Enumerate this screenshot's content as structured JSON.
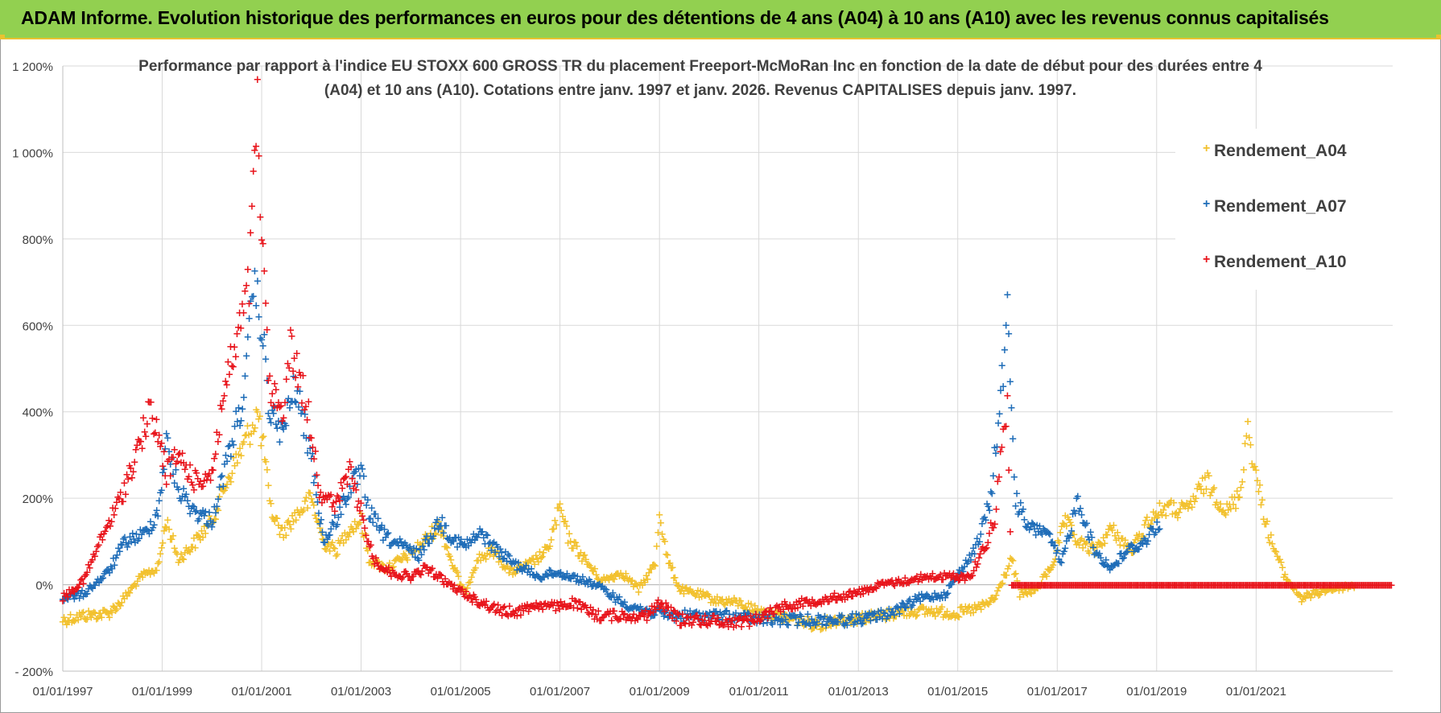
{
  "header": {
    "title": "ADAM Informe. Evolution historique des performances en euros pour des détentions de 4 ans (A04) à 10 ans (A10) avec les revenus connus capitalisés"
  },
  "chart_data": {
    "type": "scatter",
    "title": "Performance par rapport à l'indice EU STOXX 600 GROSS TR  du placement Freeport-McMoRan Inc en fonction de la date de début pour des durées entre 4 (A04) et 10 ans (A10).  Cotations entre janv. 1997 et janv. 2026. Revenus CAPITALISES  depuis janv. 1997.",
    "xlim": [
      "1997-01-01",
      "2023-10-01"
    ],
    "ylim": [
      -200,
      1200
    ],
    "y_unit": "%",
    "grid": true,
    "legend_position": "right",
    "x_ticks": [
      "1997-01-01",
      "1999-01-01",
      "2001-01-01",
      "2003-01-01",
      "2005-01-01",
      "2007-01-01",
      "2009-01-01",
      "2011-01-01",
      "2013-01-01",
      "2015-01-01",
      "2017-01-01",
      "2019-01-01",
      "2021-01-01"
    ],
    "x_tick_labels": [
      "01/01/1997",
      "01/01/1999",
      "01/01/2001",
      "01/01/2003",
      "01/01/2005",
      "01/01/2007",
      "01/01/2009",
      "01/01/2011",
      "01/01/2013",
      "01/01/2015",
      "01/01/2017",
      "01/01/2019",
      "01/01/2021"
    ],
    "y_ticks": [
      -200,
      0,
      200,
      400,
      600,
      800,
      1000,
      1200
    ],
    "y_tick_labels": [
      "- 200%",
      "0%",
      "200%",
      "400%",
      "600%",
      "800%",
      "1 000%",
      "1 200%"
    ],
    "series": [
      {
        "name": "Rendement_A04",
        "color": "#f2c12e",
        "points": [
          [
            "1997-01-01",
            -80
          ],
          [
            "1997-06-01",
            -70
          ],
          [
            "1997-12-01",
            -65
          ],
          [
            "1998-03-01",
            -40
          ],
          [
            "1998-08-01",
            20
          ],
          [
            "1998-12-01",
            40
          ],
          [
            "1999-02-01",
            150
          ],
          [
            "1999-05-01",
            60
          ],
          [
            "1999-09-01",
            100
          ],
          [
            "2000-01-01",
            150
          ],
          [
            "2000-05-01",
            250
          ],
          [
            "2000-09-01",
            330
          ],
          [
            "2000-12-01",
            400
          ],
          [
            "2001-02-01",
            280
          ],
          [
            "2001-03-01",
            180
          ],
          [
            "2001-06-01",
            120
          ],
          [
            "2001-09-01",
            160
          ],
          [
            "2002-01-01",
            200
          ],
          [
            "2002-04-01",
            100
          ],
          [
            "2002-07-01",
            80
          ],
          [
            "2002-10-01",
            130
          ],
          [
            "2003-01-01",
            150
          ],
          [
            "2003-03-01",
            60
          ],
          [
            "2003-07-01",
            40
          ],
          [
            "2003-11-01",
            60
          ],
          [
            "2004-03-01",
            90
          ],
          [
            "2004-08-01",
            140
          ],
          [
            "2004-11-01",
            50
          ],
          [
            "2005-02-01",
            -20
          ],
          [
            "2005-05-01",
            60
          ],
          [
            "2005-09-01",
            80
          ],
          [
            "2006-01-01",
            30
          ],
          [
            "2006-06-01",
            50
          ],
          [
            "2006-10-01",
            80
          ],
          [
            "2007-01-01",
            180
          ],
          [
            "2007-03-01",
            110
          ],
          [
            "2007-07-01",
            60
          ],
          [
            "2007-11-01",
            10
          ],
          [
            "2008-04-01",
            30
          ],
          [
            "2008-08-01",
            -10
          ],
          [
            "2008-12-01",
            50
          ],
          [
            "2009-01-01",
            170
          ],
          [
            "2009-03-01",
            60
          ],
          [
            "2009-06-01",
            -10
          ],
          [
            "2009-10-01",
            -20
          ],
          [
            "2010-03-01",
            -35
          ],
          [
            "2010-08-01",
            -40
          ],
          [
            "2011-01-01",
            -60
          ],
          [
            "2011-05-01",
            -70
          ],
          [
            "2011-10-01",
            -80
          ],
          [
            "2012-03-01",
            -90
          ],
          [
            "2012-08-01",
            -80
          ],
          [
            "2013-01-01",
            -75
          ],
          [
            "2013-07-01",
            -70
          ],
          [
            "2014-01-01",
            -60
          ],
          [
            "2014-07-01",
            -60
          ],
          [
            "2015-01-01",
            -65
          ],
          [
            "2015-07-01",
            -50
          ],
          [
            "2015-10-01",
            -30
          ],
          [
            "2016-02-01",
            60
          ],
          [
            "2016-04-01",
            -20
          ],
          [
            "2016-08-01",
            -10
          ],
          [
            "2016-12-01",
            50
          ],
          [
            "2017-03-01",
            150
          ],
          [
            "2017-06-01",
            100
          ],
          [
            "2017-10-01",
            80
          ],
          [
            "2018-02-01",
            130
          ],
          [
            "2018-07-01",
            80
          ],
          [
            "2018-11-01",
            150
          ],
          [
            "2019-03-01",
            180
          ],
          [
            "2019-08-01",
            170
          ],
          [
            "2020-01-01",
            240
          ],
          [
            "2020-06-01",
            170
          ],
          [
            "2020-09-01",
            210
          ],
          [
            "2020-11-01",
            370
          ],
          [
            "2021-01-01",
            250
          ],
          [
            "2021-04-01",
            120
          ],
          [
            "2021-08-01",
            20
          ],
          [
            "2021-12-01",
            -30
          ],
          [
            "2022-06-01",
            -10
          ],
          [
            "2023-01-01",
            0
          ]
        ]
      },
      {
        "name": "Rendement_A07",
        "color": "#1f6db8",
        "points": [
          [
            "1997-01-01",
            -30
          ],
          [
            "1997-06-01",
            -20
          ],
          [
            "1997-12-01",
            30
          ],
          [
            "1998-04-01",
            100
          ],
          [
            "1998-09-01",
            120
          ],
          [
            "1998-12-01",
            170
          ],
          [
            "1999-02-01",
            330
          ],
          [
            "1999-05-01",
            220
          ],
          [
            "1999-09-01",
            170
          ],
          [
            "2000-01-01",
            150
          ],
          [
            "2000-05-01",
            300
          ],
          [
            "2000-09-01",
            450
          ],
          [
            "2000-11-01",
            700
          ],
          [
            "2001-01-01",
            600
          ],
          [
            "2001-03-01",
            400
          ],
          [
            "2001-06-01",
            350
          ],
          [
            "2001-09-01",
            460
          ],
          [
            "2002-01-01",
            300
          ],
          [
            "2002-04-01",
            100
          ],
          [
            "2002-07-01",
            150
          ],
          [
            "2002-10-01",
            220
          ],
          [
            "2003-01-01",
            260
          ],
          [
            "2003-03-01",
            170
          ],
          [
            "2003-07-01",
            110
          ],
          [
            "2003-11-01",
            90
          ],
          [
            "2004-03-01",
            70
          ],
          [
            "2004-08-01",
            150
          ],
          [
            "2004-11-01",
            110
          ],
          [
            "2005-02-01",
            90
          ],
          [
            "2005-06-01",
            120
          ],
          [
            "2005-10-01",
            80
          ],
          [
            "2006-02-01",
            50
          ],
          [
            "2006-08-01",
            20
          ],
          [
            "2006-12-01",
            30
          ],
          [
            "2007-04-01",
            20
          ],
          [
            "2007-10-01",
            0
          ],
          [
            "2008-04-01",
            -40
          ],
          [
            "2008-10-01",
            -60
          ],
          [
            "2009-04-01",
            -70
          ],
          [
            "2009-10-01",
            -70
          ],
          [
            "2010-04-01",
            -70
          ],
          [
            "2010-10-01",
            -75
          ],
          [
            "2011-04-01",
            -80
          ],
          [
            "2011-10-01",
            -80
          ],
          [
            "2012-04-01",
            -80
          ],
          [
            "2012-10-01",
            -80
          ],
          [
            "2013-04-01",
            -75
          ],
          [
            "2013-10-01",
            -60
          ],
          [
            "2014-04-01",
            -30
          ],
          [
            "2014-10-01",
            -20
          ],
          [
            "2015-03-01",
            50
          ],
          [
            "2015-06-01",
            100
          ],
          [
            "2015-09-01",
            200
          ],
          [
            "2015-12-01",
            500
          ],
          [
            "2016-01-01",
            630
          ],
          [
            "2016-03-01",
            200
          ],
          [
            "2016-06-01",
            130
          ],
          [
            "2016-10-01",
            130
          ],
          [
            "2017-02-01",
            50
          ],
          [
            "2017-06-01",
            200
          ],
          [
            "2017-10-01",
            80
          ],
          [
            "2018-02-01",
            40
          ],
          [
            "2018-06-01",
            80
          ],
          [
            "2018-10-01",
            100
          ],
          [
            "2019-02-01",
            150
          ]
        ]
      },
      {
        "name": "Rendement_A10",
        "color": "#e8141b",
        "points": [
          [
            "1997-01-01",
            -30
          ],
          [
            "1997-06-01",
            10
          ],
          [
            "1997-10-01",
            100
          ],
          [
            "1998-03-01",
            200
          ],
          [
            "1998-07-01",
            310
          ],
          [
            "1998-10-01",
            400
          ],
          [
            "1998-12-01",
            350
          ],
          [
            "1999-02-01",
            260
          ],
          [
            "1999-05-01",
            300
          ],
          [
            "1999-09-01",
            240
          ],
          [
            "2000-01-01",
            260
          ],
          [
            "2000-04-01",
            450
          ],
          [
            "2000-08-01",
            600
          ],
          [
            "2000-10-01",
            700
          ],
          [
            "2000-12-01",
            1100
          ],
          [
            "2001-01-01",
            800
          ],
          [
            "2001-03-01",
            450
          ],
          [
            "2001-06-01",
            400
          ],
          [
            "2001-08-01",
            550
          ],
          [
            "2001-11-01",
            450
          ],
          [
            "2002-01-01",
            360
          ],
          [
            "2002-03-01",
            220
          ],
          [
            "2002-07-01",
            180
          ],
          [
            "2002-10-01",
            270
          ],
          [
            "2003-01-01",
            170
          ],
          [
            "2003-04-01",
            60
          ],
          [
            "2003-08-01",
            30
          ],
          [
            "2004-01-01",
            20
          ],
          [
            "2004-05-01",
            40
          ],
          [
            "2004-09-01",
            10
          ],
          [
            "2005-02-01",
            -20
          ],
          [
            "2005-06-01",
            -40
          ],
          [
            "2005-11-01",
            -60
          ],
          [
            "2006-03-01",
            -60
          ],
          [
            "2006-07-01",
            -45
          ],
          [
            "2006-12-01",
            -50
          ],
          [
            "2007-04-01",
            -40
          ],
          [
            "2007-10-01",
            -70
          ],
          [
            "2008-04-01",
            -70
          ],
          [
            "2008-10-01",
            -70
          ],
          [
            "2009-01-01",
            -40
          ],
          [
            "2009-06-01",
            -80
          ],
          [
            "2009-12-01",
            -80
          ],
          [
            "2010-06-01",
            -85
          ],
          [
            "2010-12-01",
            -80
          ],
          [
            "2011-06-01",
            -50
          ],
          [
            "2011-12-01",
            -40
          ],
          [
            "2012-06-01",
            -30
          ],
          [
            "2012-12-01",
            -20
          ],
          [
            "2013-06-01",
            0
          ],
          [
            "2013-12-01",
            10
          ],
          [
            "2014-06-01",
            20
          ],
          [
            "2014-12-01",
            20
          ],
          [
            "2015-04-01",
            20
          ],
          [
            "2015-08-01",
            100
          ],
          [
            "2015-10-01",
            160
          ],
          [
            "2015-12-01",
            350
          ],
          [
            "2016-01-01",
            420
          ],
          [
            "2016-02-01",
            0
          ],
          [
            "2023-10-01",
            0
          ]
        ]
      }
    ]
  },
  "legend": {
    "items": [
      {
        "label": "Rendement_A04",
        "color": "#f2c12e"
      },
      {
        "label": "Rendement_A07",
        "color": "#1f6db8"
      },
      {
        "label": "Rendement_A10",
        "color": "#e8141b"
      }
    ]
  }
}
